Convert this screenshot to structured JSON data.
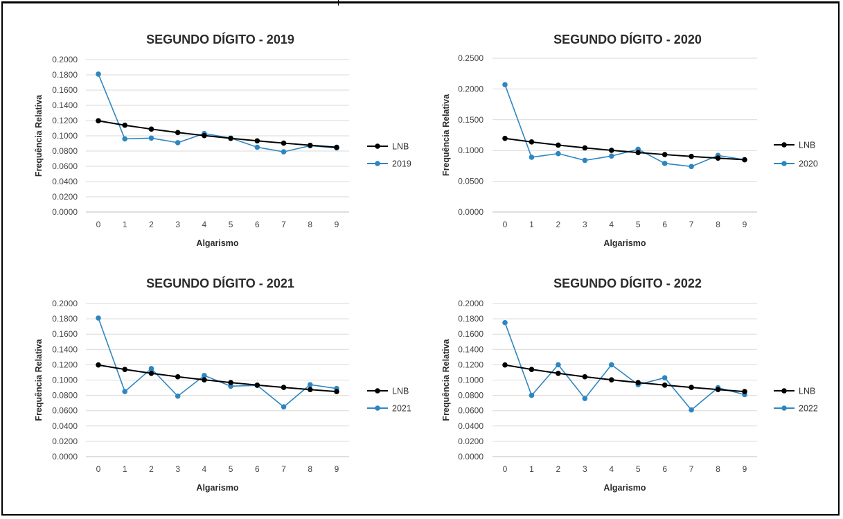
{
  "chart_data": [
    {
      "type": "line",
      "title": "SEGUNDO DÍGITO - 2019",
      "xlabel": "Algarismo",
      "ylabel": "Frequência Relativa",
      "categories": [
        "0",
        "1",
        "2",
        "3",
        "4",
        "5",
        "6",
        "7",
        "8",
        "9"
      ],
      "ylim": [
        0,
        0.2
      ],
      "yticks": [
        "0.0000",
        "0.0200",
        "0.0400",
        "0.0600",
        "0.0800",
        "0.1000",
        "0.1200",
        "0.1400",
        "0.1600",
        "0.1800",
        "0.2000"
      ],
      "series": [
        {
          "name": "LNB",
          "color": "#000000",
          "values": [
            0.1197,
            0.1139,
            0.1088,
            0.1043,
            0.1003,
            0.0967,
            0.0934,
            0.0904,
            0.0876,
            0.085
          ]
        },
        {
          "name": "2019",
          "color": "#2e86c1",
          "values": [
            0.181,
            0.096,
            0.097,
            0.091,
            0.103,
            0.097,
            0.085,
            0.079,
            0.087,
            0.084
          ]
        }
      ],
      "legend": "right",
      "grid": true
    },
    {
      "type": "line",
      "title": "SEGUNDO DÍGITO - 2020",
      "xlabel": "Algarismo",
      "ylabel": "Frequência Relativa",
      "categories": [
        "0",
        "1",
        "2",
        "3",
        "4",
        "5",
        "6",
        "7",
        "8",
        "9"
      ],
      "ylim": [
        0,
        0.25
      ],
      "yticks": [
        "0.0000",
        "0.0500",
        "0.1000",
        "0.1500",
        "0.2000",
        "0.2500"
      ],
      "series": [
        {
          "name": "LNB",
          "color": "#000000",
          "values": [
            0.1197,
            0.1139,
            0.1088,
            0.1043,
            0.1003,
            0.0967,
            0.0934,
            0.0904,
            0.0876,
            0.085
          ]
        },
        {
          "name": "2020",
          "color": "#2e86c1",
          "values": [
            0.207,
            0.089,
            0.095,
            0.084,
            0.091,
            0.102,
            0.079,
            0.074,
            0.092,
            0.085
          ]
        }
      ],
      "legend": "right",
      "grid": true
    },
    {
      "type": "line",
      "title": "SEGUNDO DÍGITO - 2021",
      "xlabel": "Algarismo",
      "ylabel": "Frequência Relativa",
      "categories": [
        "0",
        "1",
        "2",
        "3",
        "4",
        "5",
        "6",
        "7",
        "8",
        "9"
      ],
      "ylim": [
        0,
        0.2
      ],
      "yticks": [
        "0.0000",
        "0.0200",
        "0.0400",
        "0.0600",
        "0.0800",
        "0.1000",
        "0.1200",
        "0.1400",
        "0.1600",
        "0.1800",
        "0.2000"
      ],
      "series": [
        {
          "name": "LNB",
          "color": "#000000",
          "values": [
            0.1197,
            0.1139,
            0.1088,
            0.1043,
            0.1003,
            0.0967,
            0.0934,
            0.0904,
            0.0876,
            0.085
          ]
        },
        {
          "name": "2021",
          "color": "#2e86c1",
          "values": [
            0.181,
            0.085,
            0.115,
            0.079,
            0.106,
            0.092,
            0.093,
            0.065,
            0.094,
            0.089
          ]
        }
      ],
      "legend": "right",
      "grid": true
    },
    {
      "type": "line",
      "title": "SEGUNDO DÍGITO - 2022",
      "xlabel": "Algarismo",
      "ylabel": "Frequência Relativa",
      "categories": [
        "0",
        "1",
        "2",
        "3",
        "4",
        "5",
        "6",
        "7",
        "8",
        "9"
      ],
      "ylim": [
        0,
        0.2
      ],
      "yticks": [
        "0.0000",
        "0.0200",
        "0.0400",
        "0.0600",
        "0.0800",
        "0.1000",
        "0.1200",
        "0.1400",
        "0.1600",
        "0.1800",
        "0.2000"
      ],
      "series": [
        {
          "name": "LNB",
          "color": "#000000",
          "values": [
            0.1197,
            0.1139,
            0.1088,
            0.1043,
            0.1003,
            0.0967,
            0.0934,
            0.0904,
            0.0876,
            0.085
          ]
        },
        {
          "name": "2022",
          "color": "#2e86c1",
          "values": [
            0.175,
            0.08,
            0.12,
            0.076,
            0.12,
            0.094,
            0.103,
            0.061,
            0.09,
            0.081
          ]
        }
      ],
      "legend": "right",
      "grid": true
    }
  ]
}
